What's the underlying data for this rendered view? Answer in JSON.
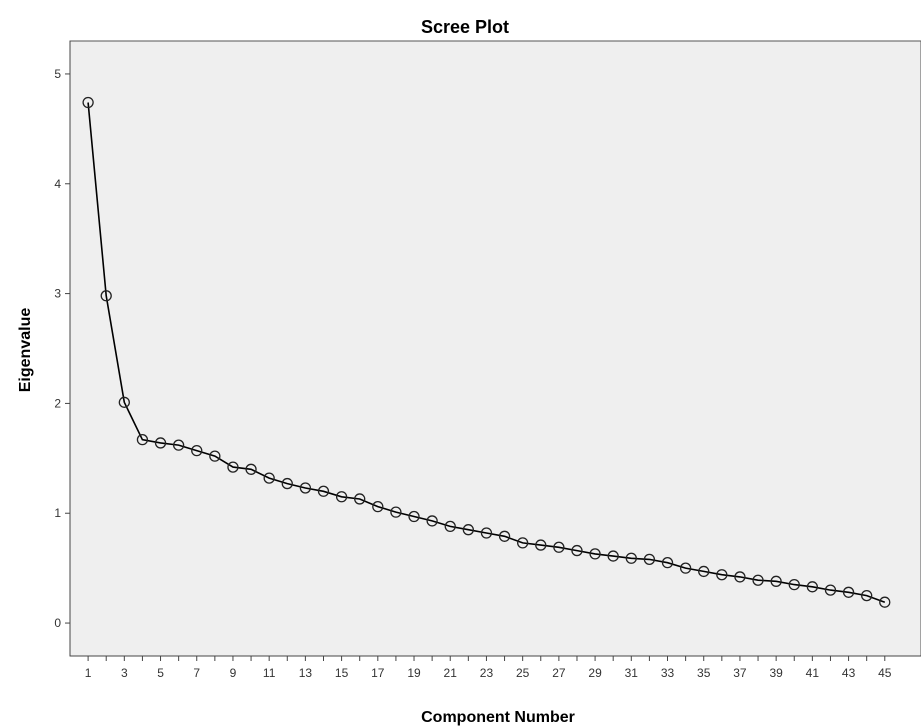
{
  "chart_data": {
    "type": "line",
    "title": "Scree Plot",
    "xlabel": "Component Number",
    "ylabel": "Eigenvalue",
    "x_tick_labels": [
      "1",
      "3",
      "5",
      "7",
      "9",
      "11",
      "13",
      "15",
      "17",
      "19",
      "21",
      "23",
      "25",
      "27",
      "29",
      "31",
      "33",
      "35",
      "37",
      "39",
      "41",
      "43",
      "45"
    ],
    "y_ticks": [
      0,
      1,
      2,
      3,
      4,
      5
    ],
    "xlim": [
      0,
      47
    ],
    "ylim": [
      -0.3,
      5.3
    ],
    "grid": false,
    "legend": "none",
    "colors": {
      "line": "#000000",
      "marker": "#222222",
      "plot_background": "#efefef"
    },
    "x": [
      1,
      2,
      3,
      4,
      5,
      6,
      7,
      8,
      9,
      10,
      11,
      12,
      13,
      14,
      15,
      16,
      17,
      18,
      19,
      20,
      21,
      22,
      23,
      24,
      25,
      26,
      27,
      28,
      29,
      30,
      31,
      32,
      33,
      34,
      35,
      36,
      37,
      38,
      39,
      40,
      41,
      42,
      43,
      44,
      45
    ],
    "series": [
      {
        "values": [
          4.74,
          2.98,
          2.01,
          1.67,
          1.64,
          1.62,
          1.57,
          1.52,
          1.42,
          1.4,
          1.32,
          1.27,
          1.23,
          1.2,
          1.15,
          1.13,
          1.06,
          1.01,
          0.97,
          0.93,
          0.88,
          0.85,
          0.82,
          0.79,
          0.73,
          0.71,
          0.69,
          0.66,
          0.63,
          0.61,
          0.59,
          0.58,
          0.55,
          0.5,
          0.47,
          0.44,
          0.42,
          0.39,
          0.38,
          0.35,
          0.33,
          0.3,
          0.28,
          0.25,
          0.19
        ]
      }
    ]
  }
}
